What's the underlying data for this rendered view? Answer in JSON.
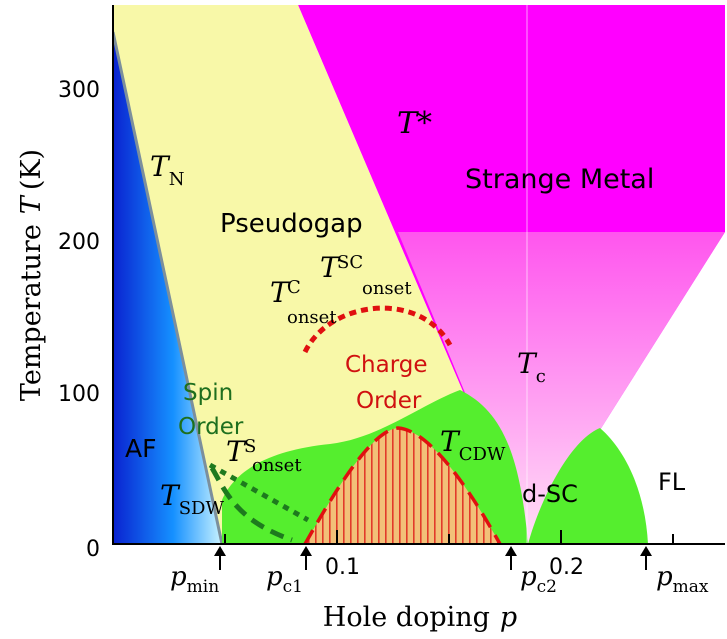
{
  "colors": {
    "af_gradient": [
      "#0a2bd8",
      "#1aa8ff",
      "#c5f0ff"
    ],
    "pseudogap": "#f8f8a8",
    "strange_metal": "#ff00ff",
    "pink_gradient_top": "#ff66ee",
    "pink_gradient_bottom": "#ffd6f4",
    "dsc_dome": "#55ee2e",
    "dsc_dome_edge": "#2fc81a",
    "charge_order_fill": "#f5b96b",
    "charge_order_stripes": "#e02020",
    "red_dash": "#e01010",
    "spin_dash": "#1e7a1e",
    "axis": "#000000",
    "label_dark_green": "#1e6f1e",
    "label_red": "#d01010"
  },
  "axes": {
    "y_title": "Temperature",
    "y_title_T": "T",
    "y_title_unit": "(K)",
    "x_title": "Hole doping",
    "x_title_p": "p",
    "y_ticks": [
      {
        "label": "0",
        "value": 0
      },
      {
        "label": "100",
        "value": 100
      },
      {
        "label": "200",
        "value": 200
      },
      {
        "label": "300",
        "value": 300
      }
    ],
    "x_ticks": [
      {
        "label": "0.1",
        "value": 0.1
      },
      {
        "label": "0.2",
        "value": 0.2
      }
    ],
    "y_range": [
      0,
      345
    ],
    "x_range": [
      0,
      0.27
    ]
  },
  "regions": {
    "af": "AF",
    "pseudogap": "Pseudogap",
    "strange_metal": "Strange Metal",
    "fl": "FL",
    "dsc": "d-SC",
    "spin_order_line1": "Spin",
    "spin_order_line2": "Order",
    "charge_order_line1": "Charge",
    "charge_order_line2": "Order"
  },
  "temps": {
    "T_N": {
      "main": "T",
      "sub": "N"
    },
    "T_star": {
      "main": "T*"
    },
    "T_c": {
      "main": "T",
      "sub": "c"
    },
    "T_CDW": {
      "main": "T",
      "sub": "CDW"
    },
    "T_SDW": {
      "main": "T",
      "sub": "SDW"
    },
    "T_C_onset": {
      "main": "T",
      "sup": "C",
      "sub": "onset"
    },
    "T_SC_onset": {
      "main": "T",
      "sup": "SC",
      "sub": "onset"
    },
    "T_S_onset": {
      "main": "T",
      "sup": "S",
      "sub": "onset"
    }
  },
  "dopings": {
    "p_min": {
      "main": "p",
      "sub": "min"
    },
    "p_c1": {
      "main": "p",
      "sub": "c1"
    },
    "p_c2": {
      "main": "p",
      "sub": "c2"
    },
    "p_max": {
      "main": "p",
      "sub": "max"
    }
  }
}
